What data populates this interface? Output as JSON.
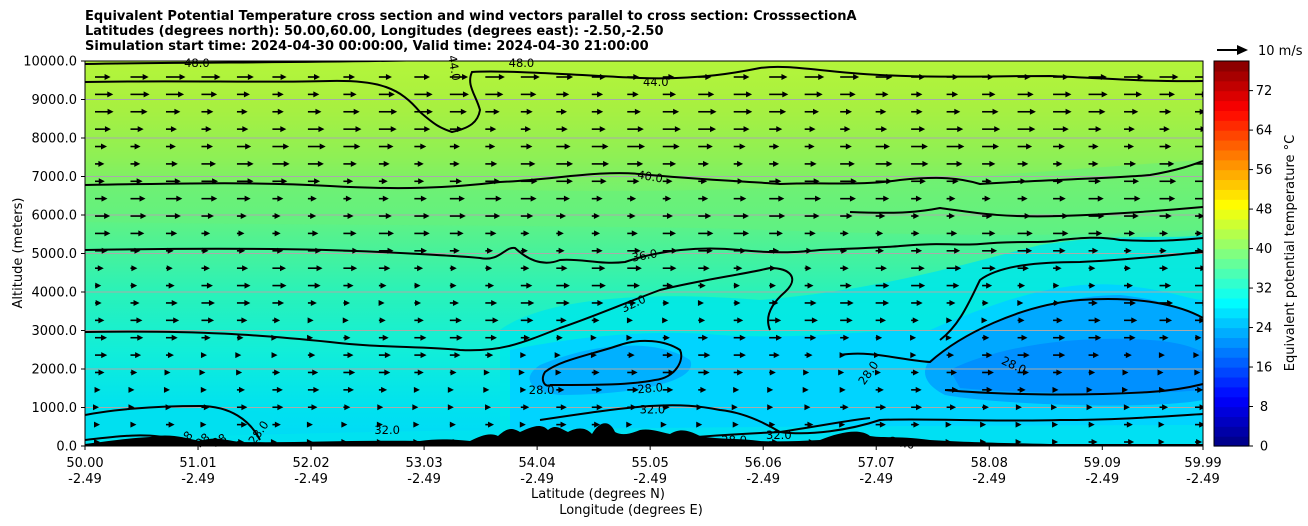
{
  "chart_data": {
    "type": "contour",
    "title_lines": [
      "Equivalent Potential Temperature cross section and wind vectors parallel to cross section: CrosssectionA",
      "Latitudes (degrees north): 50.00,60.00, Longitudes (degrees east): -2.50,-2.50",
      "Simulation start time: 2024-04-30 00:00:00, Valid time: 2024-04-30 21:00:00"
    ],
    "ylabel": "Altitude (meters)",
    "xlabel_lat": "Latitude (degrees N)",
    "xlabel_lon": "Longitude (degrees E)",
    "ylim": [
      0,
      10000
    ],
    "y_ticks": [
      "0.0",
      "1000.0",
      "2000.0",
      "3000.0",
      "4000.0",
      "5000.0",
      "6000.0",
      "7000.0",
      "8000.0",
      "9000.0",
      "10000.0"
    ],
    "y_tick_values": [
      0,
      1000,
      2000,
      3000,
      4000,
      5000,
      6000,
      7000,
      8000,
      9000,
      10000
    ],
    "x_ticks_lat": [
      "50.00",
      "51.01",
      "52.02",
      "53.03",
      "54.04",
      "55.05",
      "56.06",
      "57.07",
      "58.08",
      "59.09",
      "59.99"
    ],
    "x_ticks_lon": [
      "-2.49",
      "-2.49",
      "-2.49",
      "-2.49",
      "-2.49",
      "-2.49",
      "-2.49",
      "-2.49",
      "-2.49",
      "-2.49",
      "-2.49"
    ],
    "x_tick_values": [
      50.0,
      51.01,
      52.02,
      53.03,
      54.04,
      55.05,
      56.06,
      57.07,
      58.08,
      59.09,
      59.99
    ],
    "xlim": [
      50.0,
      59.99
    ],
    "colorbar": {
      "label": "Equivalent potential temperature °C",
      "ticks": [
        "0",
        "8",
        "16",
        "24",
        "32",
        "40",
        "48",
        "56",
        "64",
        "72"
      ],
      "tick_values": [
        0,
        8,
        16,
        24,
        32,
        40,
        48,
        56,
        64,
        72
      ],
      "range": [
        0,
        78
      ]
    },
    "quiver_key": "10 m/s",
    "contour_labels": [
      {
        "text": "48.0",
        "lat": 51.0,
        "alt": 9950,
        "rot": 0
      },
      {
        "text": "44.0",
        "lat": 53.3,
        "alt": 9820,
        "rot": 80
      },
      {
        "text": "48.0",
        "lat": 53.9,
        "alt": 9950,
        "rot": 0
      },
      {
        "text": "44.0",
        "lat": 55.1,
        "alt": 9450,
        "rot": 0
      },
      {
        "text": "40.0",
        "lat": 55.05,
        "alt": 7000,
        "rot": 10
      },
      {
        "text": "36.0",
        "lat": 55.0,
        "alt": 4950,
        "rot": -10
      },
      {
        "text": "32.0",
        "lat": 54.9,
        "alt": 3700,
        "rot": -25
      },
      {
        "text": "28.0",
        "lat": 54.08,
        "alt": 1450,
        "rot": 0
      },
      {
        "text": "28.0",
        "lat": 55.05,
        "alt": 1500,
        "rot": -5
      },
      {
        "text": "32.0",
        "lat": 55.07,
        "alt": 950,
        "rot": 0
      },
      {
        "text": "32.0",
        "lat": 52.7,
        "alt": 420,
        "rot": 0
      },
      {
        "text": "28.0",
        "lat": 51.55,
        "alt": 350,
        "rot": -55
      },
      {
        "text": "28",
        "lat": 50.9,
        "alt": 200,
        "rot": -50
      },
      {
        "text": "28",
        "lat": 51.05,
        "alt": 150,
        "rot": -40
      },
      {
        "text": "28",
        "lat": 51.2,
        "alt": 150,
        "rot": -30
      },
      {
        "text": "28.0",
        "lat": 55.8,
        "alt": 150,
        "rot": 0
      },
      {
        "text": "32.0",
        "lat": 56.2,
        "alt": 280,
        "rot": 0
      },
      {
        "text": "28.0",
        "lat": 57.0,
        "alt": 1900,
        "rot": -55
      },
      {
        "text": "28.0",
        "lat": 58.3,
        "alt": 2100,
        "rot": 25
      },
      {
        "text": "24.0",
        "lat": 57.3,
        "alt": 80,
        "rot": 10
      }
    ]
  }
}
